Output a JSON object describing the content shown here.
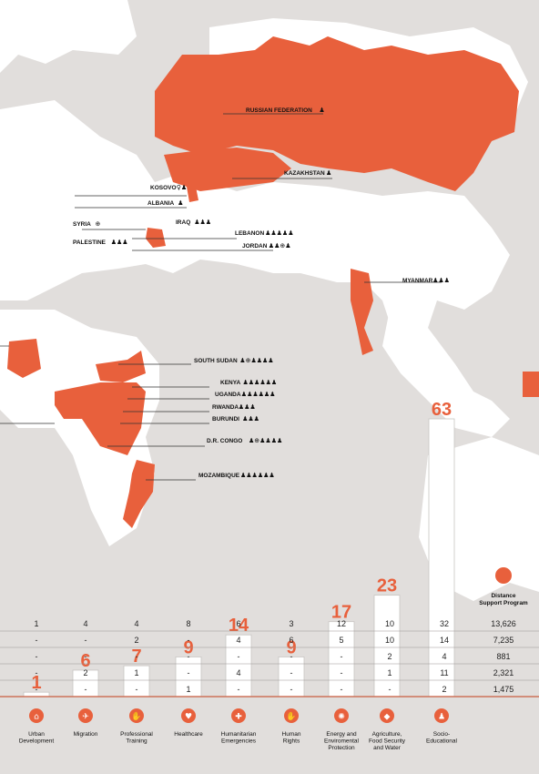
{
  "map_labels": [
    {
      "text": "RUSSIAN FEDERATION",
      "icons": "♟"
    },
    {
      "text": "KAZAKHSTAN",
      "icons": "♟"
    },
    {
      "text": "KOSOVO",
      "icons": "♀♟"
    },
    {
      "text": "ALBANIA",
      "icons": "♟"
    },
    {
      "text": "SYRIA",
      "icons": "⊕"
    },
    {
      "text": "IRAQ",
      "icons": "♟♟♟"
    },
    {
      "text": "LEBANON",
      "icons": "♟♟♟♟♟"
    },
    {
      "text": "PALESTINE",
      "icons": "♟♟♟"
    },
    {
      "text": "JORDAN",
      "icons": "♟♟⊕♟"
    },
    {
      "text": "MYANMAR",
      "icons": "♟♟♟"
    },
    {
      "text": "SOUTH SUDAN",
      "icons": "♟⊕♟♟♟♟"
    },
    {
      "text": "KENYA",
      "icons": "♟♟♟♟♟♟"
    },
    {
      "text": "UGANDA",
      "icons": "♟♟♟♟♟♟"
    },
    {
      "text": "RWANDA",
      "icons": "♟♟♟"
    },
    {
      "text": "BURUNDI",
      "icons": "♟♟♟"
    },
    {
      "text": "D.R. CONGO",
      "icons": "♟⊕♟♟♟♟"
    },
    {
      "text": "MOZAMBIQUE",
      "icons": "♟♟♟♟♟♟"
    }
  ],
  "chart_data": {
    "type": "bar",
    "categories": [
      "Urban Development",
      "Migration",
      "Professional Training",
      "Healthcare",
      "Humanitarian Emergencies",
      "Human Rights",
      "Energy and Enviromental Protection",
      "Agriculture, Food Security and Water",
      "Socio-Educational"
    ],
    "values": [
      1,
      6,
      7,
      9,
      14,
      9,
      17,
      23,
      63
    ],
    "value_labels": [
      "1",
      "6",
      "7",
      "9",
      "14",
      "9",
      "17",
      "23",
      "63"
    ],
    "ylim": [
      0,
      63
    ],
    "table_rows": [
      [
        "1",
        "4",
        "4",
        "8",
        "6",
        "3",
        "12",
        "10",
        "32",
        "13,626"
      ],
      [
        "-",
        "-",
        "2",
        "-",
        "4",
        "6",
        "5",
        "10",
        "14",
        "7,235"
      ],
      [
        "-",
        "-",
        "-",
        "-",
        "-",
        "-",
        "-",
        "2",
        "4",
        "881"
      ],
      [
        "-",
        "2",
        "1",
        "-",
        "4",
        "-",
        "-",
        "1",
        "11",
        "2,321"
      ],
      [
        "-",
        "-",
        "-",
        "1",
        "-",
        "-",
        "-",
        "-",
        "2",
        "1,475"
      ]
    ],
    "extra_column_title": "Distance Support Program"
  },
  "colors": {
    "accent": "#e8603c",
    "land": "#ffffff",
    "sea": "#e1dedc"
  }
}
